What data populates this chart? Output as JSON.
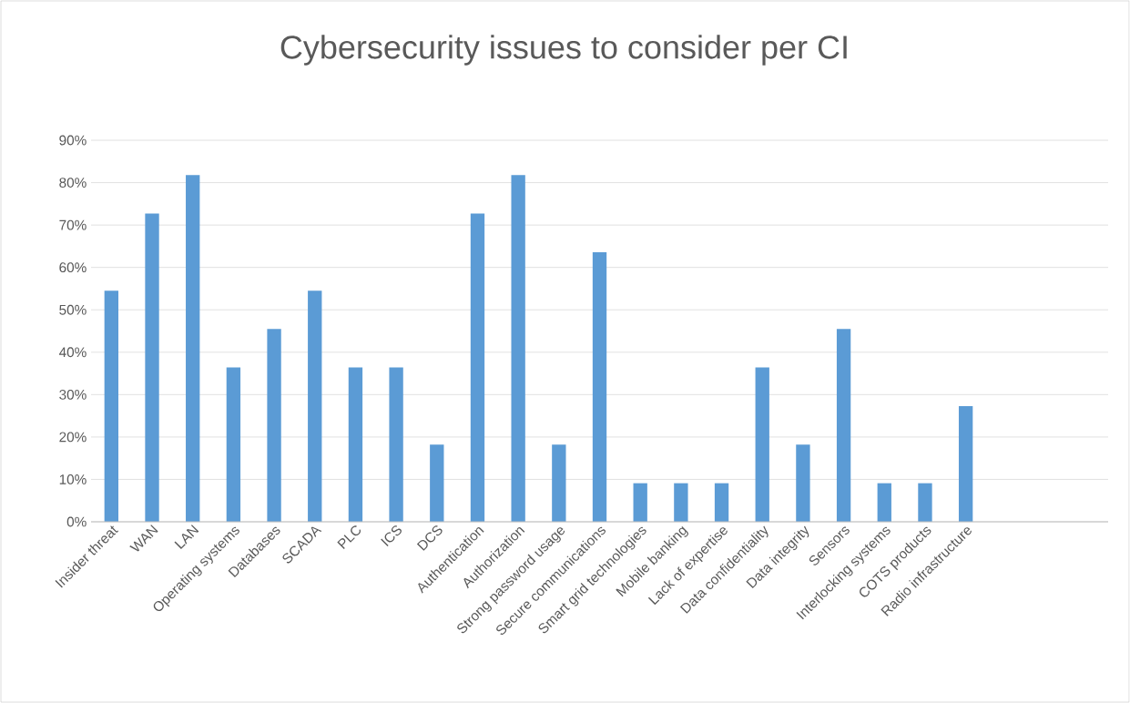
{
  "chart_data": {
    "type": "bar",
    "title": "Cybersecurity issues to consider per CI",
    "categories": [
      "Insider threat",
      "WAN",
      "LAN",
      "Operating systems",
      "Databases",
      "SCADA",
      "PLC",
      "ICS",
      "DCS",
      "Authentication",
      "Authorization",
      "Strong password usage",
      "Secure communications",
      "Smart grid technologies",
      "Mobile banking",
      "Lack of expertise",
      "Data confidentiality",
      "Data integrity",
      "Sensors",
      "Interlocking systems",
      "COTS products",
      "Radio infrastructure",
      null,
      null,
      null
    ],
    "values": [
      54.5,
      72.7,
      81.8,
      36.4,
      45.5,
      54.5,
      36.4,
      36.4,
      18.2,
      72.7,
      81.8,
      18.2,
      63.6,
      9.1,
      9.1,
      9.1,
      36.4,
      18.2,
      45.5,
      9.1,
      9.1,
      27.3,
      null,
      null,
      null
    ],
    "color": "#5b9bd5",
    "ylim": [
      0,
      90
    ],
    "yticks": [
      {
        "value": 0,
        "label": "0%"
      },
      {
        "value": 10,
        "label": "10%"
      },
      {
        "value": 20,
        "label": "20%"
      },
      {
        "value": 30,
        "label": "30%"
      },
      {
        "value": 40,
        "label": "40%"
      },
      {
        "value": 50,
        "label": "50%"
      },
      {
        "value": 60,
        "label": "60%"
      },
      {
        "value": 70,
        "label": "70%"
      },
      {
        "value": 80,
        "label": "80%"
      },
      {
        "value": 90,
        "label": "90%"
      }
    ],
    "grid": "y"
  }
}
